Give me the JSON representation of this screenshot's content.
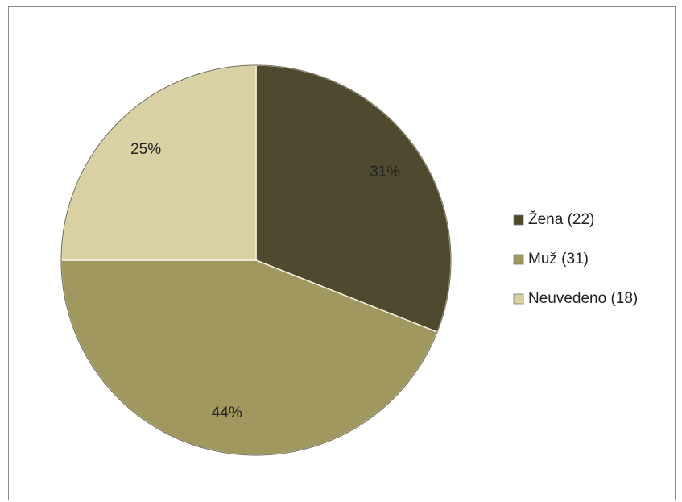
{
  "chart_data": {
    "type": "pie",
    "categories": [
      "Žena (22)",
      "Muž (31)",
      "Neuvedeno (18)"
    ],
    "values": [
      31,
      44,
      25
    ],
    "value_labels": [
      "31%",
      "44%",
      "25%"
    ],
    "colors": [
      "#4f4a2d",
      "#a19860",
      "#d9d0a3"
    ],
    "legend": "right"
  }
}
